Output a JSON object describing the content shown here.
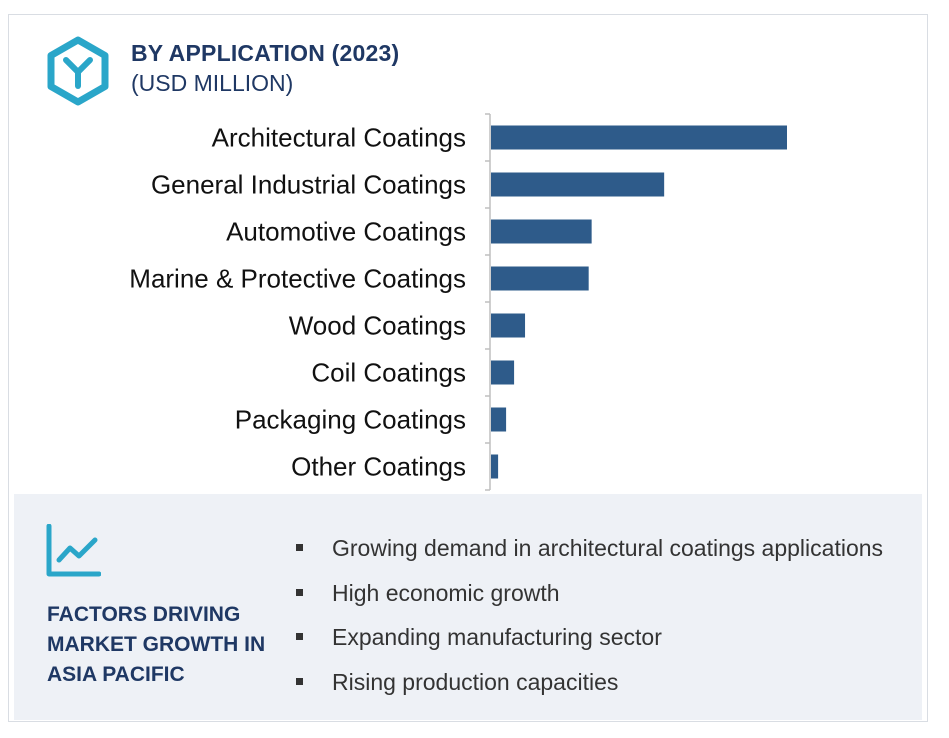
{
  "header": {
    "title": "BY APPLICATION (2023)",
    "subtitle": "(USD MILLION)",
    "logo_icon": "hexagon-y-logo-icon"
  },
  "colors": {
    "bar": "#2e5b8a",
    "title": "#1f3864",
    "logo": "#2aa6c9",
    "panel_bg": "#eef1f6"
  },
  "chart_data": {
    "type": "bar",
    "orientation": "horizontal",
    "categories": [
      "Architectural Coatings",
      "General Industrial Coatings ",
      "Automotive Coatings ",
      "Marine & Protective Coatings",
      "Wood Coatings",
      "Coil Coatings",
      "Packaging Coatings",
      "Other Coatings"
    ],
    "values": [
      100,
      58.5,
      34,
      33,
      11.5,
      7.8,
      5.1,
      2.4
    ],
    "title": "BY APPLICATION (2023)",
    "subtitle": "(USD MILLION)",
    "xlim": [
      0,
      100
    ],
    "grid": false,
    "value_axis_shown": false
  },
  "factors": {
    "icon": "trend-chart-icon",
    "title": "FACTORS DRIVING MARKET GROWTH IN ASIA PACIFIC",
    "items": [
      "Growing demand in architectural coatings applications",
      "High economic growth",
      "Expanding manufacturing sector",
      "Rising production capacities"
    ]
  }
}
